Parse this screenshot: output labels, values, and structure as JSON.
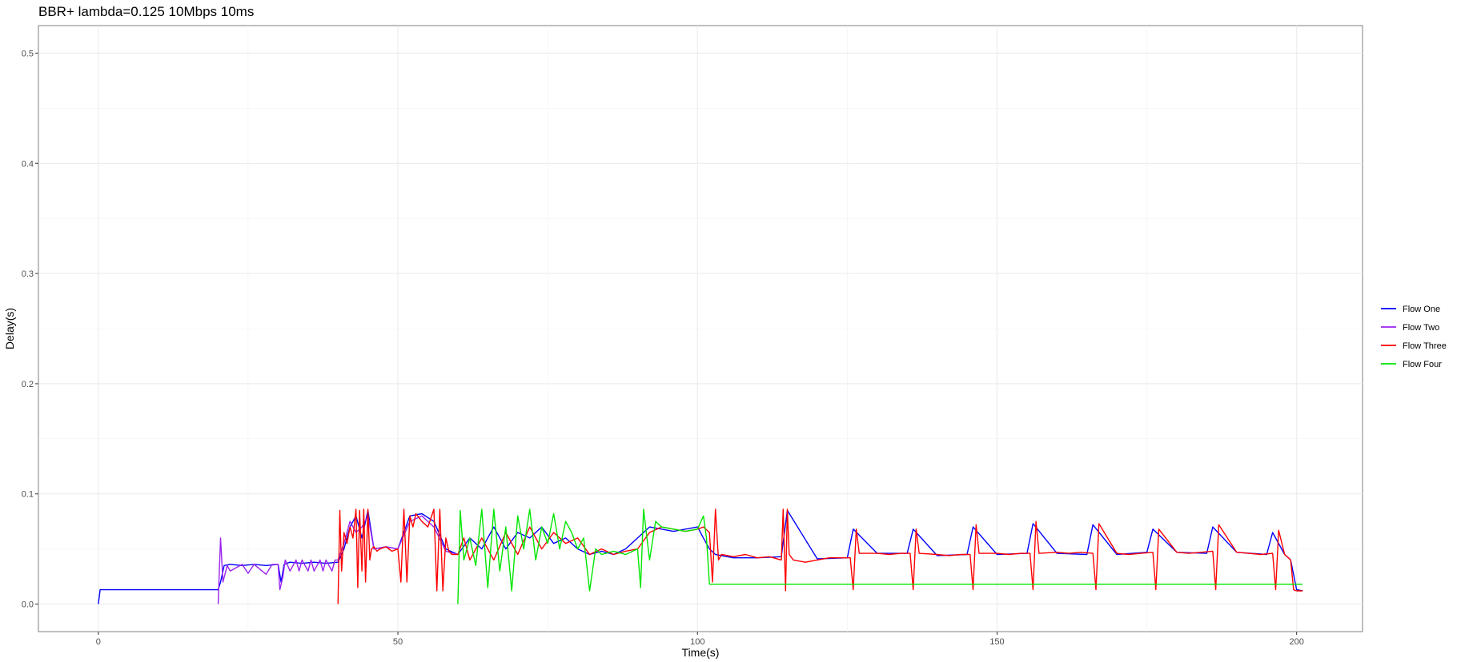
{
  "chart_data": {
    "type": "line",
    "title": "BBR+ lambda=0.125 10Mbps 10ms",
    "xlabel": "Time(s)",
    "ylabel": "Delay(s)",
    "xlim": [
      -10,
      211
    ],
    "ylim": [
      -0.025,
      0.525
    ],
    "x_ticks": [
      0,
      50,
      100,
      150,
      200
    ],
    "y_ticks": [
      0.0,
      0.1,
      0.2,
      0.3,
      0.4,
      0.5
    ],
    "x_tick_labels": [
      "0",
      "50",
      "100",
      "150",
      "200"
    ],
    "y_tick_labels": [
      "0.0",
      "0.1",
      "0.2",
      "0.3",
      "0.4",
      "0.5"
    ],
    "grid": true,
    "legend_position": "right",
    "series": [
      {
        "name": "Flow One",
        "color": "#0000ff",
        "x": [
          0,
          0.3,
          20,
          20.4,
          21,
          22,
          24,
          26,
          28,
          30,
          30.5,
          31,
          32,
          34,
          36,
          38,
          40,
          41,
          42,
          43,
          44,
          45,
          46,
          48,
          50,
          52,
          54,
          56,
          58,
          60,
          62,
          64,
          66,
          68,
          70,
          72,
          74,
          76,
          78,
          80,
          82,
          84,
          86,
          88,
          90,
          92,
          94,
          96,
          98,
          100,
          101,
          102,
          103,
          104,
          106,
          110,
          114,
          115,
          120,
          125,
          126,
          130,
          135,
          136,
          140,
          145,
          146,
          150,
          155,
          156,
          160,
          165,
          166,
          170,
          175,
          176,
          180,
          185,
          186,
          190,
          195,
          196,
          198,
          199,
          200,
          201
        ],
        "y": [
          0.0,
          0.013,
          0.013,
          0.02,
          0.035,
          0.036,
          0.035,
          0.036,
          0.035,
          0.036,
          0.02,
          0.036,
          0.038,
          0.037,
          0.038,
          0.037,
          0.038,
          0.05,
          0.07,
          0.08,
          0.06,
          0.085,
          0.05,
          0.052,
          0.05,
          0.08,
          0.082,
          0.075,
          0.05,
          0.045,
          0.06,
          0.05,
          0.07,
          0.05,
          0.065,
          0.06,
          0.07,
          0.055,
          0.06,
          0.05,
          0.045,
          0.048,
          0.045,
          0.05,
          0.06,
          0.07,
          0.068,
          0.066,
          0.068,
          0.07,
          0.06,
          0.05,
          0.045,
          0.044,
          0.042,
          0.042,
          0.043,
          0.085,
          0.041,
          0.042,
          0.068,
          0.046,
          0.046,
          0.068,
          0.044,
          0.045,
          0.07,
          0.045,
          0.046,
          0.073,
          0.046,
          0.045,
          0.072,
          0.045,
          0.047,
          0.068,
          0.047,
          0.046,
          0.07,
          0.047,
          0.045,
          0.065,
          0.045,
          0.04,
          0.013,
          0.012
        ]
      },
      {
        "name": "Flow Two",
        "color": "#9a22f0",
        "x": [
          20,
          20.4,
          20.8,
          21.5,
          22,
          24,
          25,
          26,
          28,
          29,
          30,
          30.3,
          30.8,
          31.2,
          32,
          33,
          33.5,
          34,
          35,
          35.5,
          36,
          37,
          37.5,
          38,
          39,
          39.5,
          40,
          41,
          42,
          43,
          44,
          45,
          46,
          48,
          50,
          52,
          54,
          56,
          58,
          60
        ],
        "y": [
          0.0,
          0.06,
          0.02,
          0.035,
          0.03,
          0.036,
          0.028,
          0.036,
          0.027,
          0.036,
          0.036,
          0.013,
          0.025,
          0.04,
          0.03,
          0.04,
          0.03,
          0.04,
          0.03,
          0.04,
          0.03,
          0.04,
          0.03,
          0.04,
          0.03,
          0.04,
          0.04,
          0.055,
          0.075,
          0.065,
          0.07,
          0.08,
          0.05,
          0.052,
          0.05,
          0.075,
          0.08,
          0.07,
          0.048,
          0.045
        ]
      },
      {
        "name": "Flow Three",
        "color": "#ff0000",
        "x": [
          40,
          40.3,
          40.6,
          41,
          41.5,
          42,
          42.5,
          43,
          43.3,
          43.6,
          44,
          44.3,
          44.6,
          45,
          45.3,
          45.6,
          46,
          46.5,
          47,
          48,
          49,
          50,
          50.5,
          51,
          51.5,
          52,
          52.5,
          53,
          54,
          55,
          56,
          56.5,
          57,
          57.5,
          58,
          58.5,
          59,
          60,
          61,
          62,
          64,
          66,
          68,
          70,
          72,
          74,
          76,
          78,
          80,
          82,
          84,
          86,
          88,
          90,
          92,
          94,
          96,
          98,
          100,
          101,
          102,
          102.5,
          103,
          103.5,
          104,
          106,
          108,
          110,
          112,
          114,
          114.3,
          114.7,
          115,
          115.3,
          116,
          118,
          120,
          122,
          124,
          125.5,
          126,
          126.5,
          127,
          130,
          132,
          134,
          135.5,
          136,
          136.5,
          137,
          140,
          142,
          144,
          145.5,
          146,
          146.5,
          147,
          150,
          152,
          154,
          155.5,
          156,
          156.5,
          157,
          160,
          162,
          164,
          166,
          166.5,
          167,
          170,
          172,
          174,
          176,
          176.5,
          177,
          180,
          182,
          184,
          186,
          186.5,
          187,
          190,
          192,
          194,
          196,
          196.5,
          197,
          198,
          199,
          199.5,
          200,
          201
        ],
        "y": [
          0.0,
          0.085,
          0.03,
          0.065,
          0.055,
          0.07,
          0.06,
          0.086,
          0.015,
          0.085,
          0.03,
          0.086,
          0.02,
          0.086,
          0.04,
          0.05,
          0.052,
          0.048,
          0.05,
          0.052,
          0.048,
          0.05,
          0.02,
          0.086,
          0.02,
          0.08,
          0.07,
          0.082,
          0.075,
          0.07,
          0.086,
          0.012,
          0.086,
          0.012,
          0.06,
          0.048,
          0.045,
          0.045,
          0.06,
          0.04,
          0.06,
          0.04,
          0.065,
          0.045,
          0.07,
          0.05,
          0.065,
          0.055,
          0.06,
          0.045,
          0.05,
          0.045,
          0.048,
          0.05,
          0.065,
          0.07,
          0.068,
          0.066,
          0.068,
          0.07,
          0.065,
          0.02,
          0.086,
          0.04,
          0.045,
          0.043,
          0.045,
          0.042,
          0.043,
          0.04,
          0.086,
          0.012,
          0.086,
          0.045,
          0.04,
          0.038,
          0.04,
          0.042,
          0.042,
          0.042,
          0.013,
          0.068,
          0.046,
          0.046,
          0.045,
          0.046,
          0.046,
          0.013,
          0.068,
          0.046,
          0.045,
          0.044,
          0.045,
          0.045,
          0.013,
          0.072,
          0.046,
          0.046,
          0.045,
          0.046,
          0.046,
          0.013,
          0.075,
          0.046,
          0.047,
          0.046,
          0.047,
          0.046,
          0.013,
          0.073,
          0.046,
          0.045,
          0.046,
          0.047,
          0.013,
          0.068,
          0.047,
          0.046,
          0.047,
          0.048,
          0.013,
          0.072,
          0.047,
          0.046,
          0.045,
          0.046,
          0.013,
          0.067,
          0.045,
          0.04,
          0.013,
          0.012,
          0.012
        ]
      },
      {
        "name": "Flow Four",
        "color": "#00e600",
        "x": [
          60,
          60.4,
          61,
          62,
          63,
          64,
          65,
          66,
          67,
          68,
          69,
          70,
          71,
          72,
          73,
          74,
          75,
          76,
          77,
          78,
          79,
          80,
          81,
          82,
          83,
          84,
          86,
          88,
          90,
          90.5,
          91,
          92,
          93,
          94,
          96,
          98,
          100,
          101,
          101.5,
          102,
          110,
          120,
          130,
          140,
          150,
          160,
          170,
          180,
          190,
          200,
          201
        ],
        "y": [
          0.0,
          0.085,
          0.04,
          0.06,
          0.035,
          0.086,
          0.015,
          0.086,
          0.03,
          0.07,
          0.012,
          0.08,
          0.05,
          0.086,
          0.04,
          0.07,
          0.055,
          0.082,
          0.05,
          0.075,
          0.065,
          0.05,
          0.06,
          0.012,
          0.05,
          0.045,
          0.048,
          0.045,
          0.05,
          0.015,
          0.086,
          0.04,
          0.075,
          0.07,
          0.068,
          0.066,
          0.068,
          0.08,
          0.06,
          0.018,
          0.018,
          0.018,
          0.018,
          0.018,
          0.018,
          0.018,
          0.018,
          0.018,
          0.018,
          0.018,
          0.018
        ]
      }
    ]
  }
}
